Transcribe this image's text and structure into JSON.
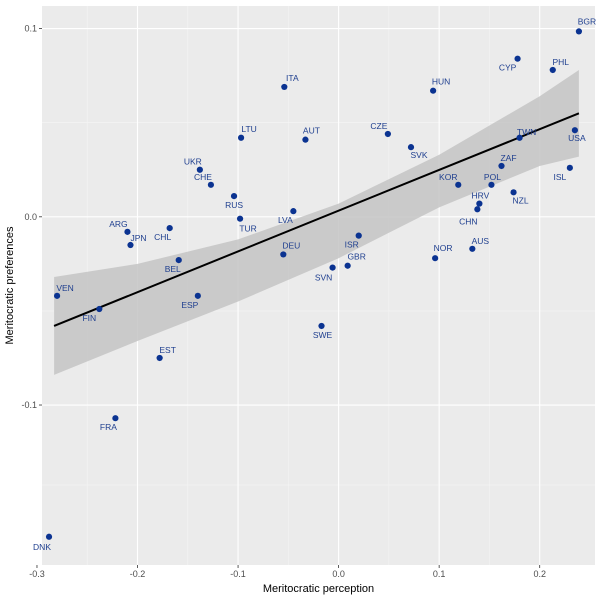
{
  "chart_data": {
    "type": "scatter",
    "title": "",
    "xlabel": "Meritocratic perception",
    "ylabel": "Meritocratic preferences",
    "xlim": [
      -0.295,
      0.255
    ],
    "ylim": [
      -0.185,
      0.112
    ],
    "x_ticks": [
      -0.3,
      -0.2,
      -0.1,
      0.0,
      0.1,
      0.2
    ],
    "x_tick_labels": [
      "-0.3",
      "-0.2",
      "-0.1",
      "0.0",
      "0.1",
      "0.2"
    ],
    "y_ticks": [
      -0.1,
      0.0,
      0.1
    ],
    "y_tick_labels": [
      "-0.1",
      "0.0",
      "0.1"
    ],
    "grid": true,
    "colors": {
      "panel": "#ebebeb",
      "grid_major": "#ffffff",
      "grid_minor": "#f5f5f5",
      "point": "#0b3391",
      "label": "#1f3f8f",
      "ribbon": "#c4c4c4",
      "fit_line": "#000000"
    },
    "fit_line": {
      "x": [
        -0.283,
        0.239
      ],
      "y": [
        -0.058,
        0.055
      ]
    },
    "confidence_band": {
      "x": [
        -0.283,
        -0.2,
        -0.1,
        0.0,
        0.1,
        0.2,
        0.239
      ],
      "upper": [
        -0.032,
        -0.025,
        -0.012,
        0.007,
        0.033,
        0.064,
        0.078
      ],
      "lower": [
        -0.084,
        -0.066,
        -0.045,
        -0.022,
        0.005,
        0.027,
        0.032
      ]
    },
    "points": [
      {
        "label": "BGR",
        "x": 0.239,
        "y": 0.0985
      },
      {
        "label": "CYP",
        "x": 0.178,
        "y": 0.084
      },
      {
        "label": "PHL",
        "x": 0.213,
        "y": 0.078
      },
      {
        "label": "ITA",
        "x": -0.054,
        "y": 0.069
      },
      {
        "label": "HUN",
        "x": 0.094,
        "y": 0.067
      },
      {
        "label": "USA",
        "x": 0.235,
        "y": 0.046
      },
      {
        "label": "TWN",
        "x": 0.18,
        "y": 0.042
      },
      {
        "label": "LTU",
        "x": -0.097,
        "y": 0.042
      },
      {
        "label": "AUT",
        "x": -0.033,
        "y": 0.041
      },
      {
        "label": "CZE",
        "x": 0.049,
        "y": 0.044
      },
      {
        "label": "SVK",
        "x": 0.072,
        "y": 0.037
      },
      {
        "label": "ZAF",
        "x": 0.162,
        "y": 0.027
      },
      {
        "label": "ISL",
        "x": 0.23,
        "y": 0.026
      },
      {
        "label": "UKR",
        "x": -0.138,
        "y": 0.025
      },
      {
        "label": "CHE",
        "x": -0.127,
        "y": 0.017
      },
      {
        "label": "KOR",
        "x": 0.119,
        "y": 0.017
      },
      {
        "label": "POL",
        "x": 0.152,
        "y": 0.017
      },
      {
        "label": "NZL",
        "x": 0.174,
        "y": 0.013
      },
      {
        "label": "RUS",
        "x": -0.104,
        "y": 0.011
      },
      {
        "label": "HRV",
        "x": 0.14,
        "y": 0.007
      },
      {
        "label": "CHN",
        "x": 0.138,
        "y": 0.004
      },
      {
        "label": "LVA",
        "x": -0.045,
        "y": 0.003
      },
      {
        "label": "TUR",
        "x": -0.098,
        "y": -0.001
      },
      {
        "label": "CHL",
        "x": -0.168,
        "y": -0.006
      },
      {
        "label": "ARG",
        "x": -0.21,
        "y": -0.008
      },
      {
        "label": "ISR",
        "x": 0.02,
        "y": -0.01
      },
      {
        "label": "JPN",
        "x": -0.207,
        "y": -0.015
      },
      {
        "label": "AUS",
        "x": 0.133,
        "y": -0.017
      },
      {
        "label": "DEU",
        "x": -0.055,
        "y": -0.02
      },
      {
        "label": "NOR",
        "x": 0.096,
        "y": -0.022
      },
      {
        "label": "BEL",
        "x": -0.159,
        "y": -0.023
      },
      {
        "label": "GBR",
        "x": 0.009,
        "y": -0.026
      },
      {
        "label": "SVN",
        "x": -0.006,
        "y": -0.027
      },
      {
        "label": "VEN",
        "x": -0.28,
        "y": -0.042
      },
      {
        "label": "ESP",
        "x": -0.14,
        "y": -0.042
      },
      {
        "label": "FIN",
        "x": -0.238,
        "y": -0.049
      },
      {
        "label": "SWE",
        "x": -0.017,
        "y": -0.058
      },
      {
        "label": "EST",
        "x": -0.178,
        "y": -0.075
      },
      {
        "label": "FRA",
        "x": -0.222,
        "y": -0.107
      },
      {
        "label": "DNK",
        "x": -0.288,
        "y": -0.17
      }
    ]
  }
}
